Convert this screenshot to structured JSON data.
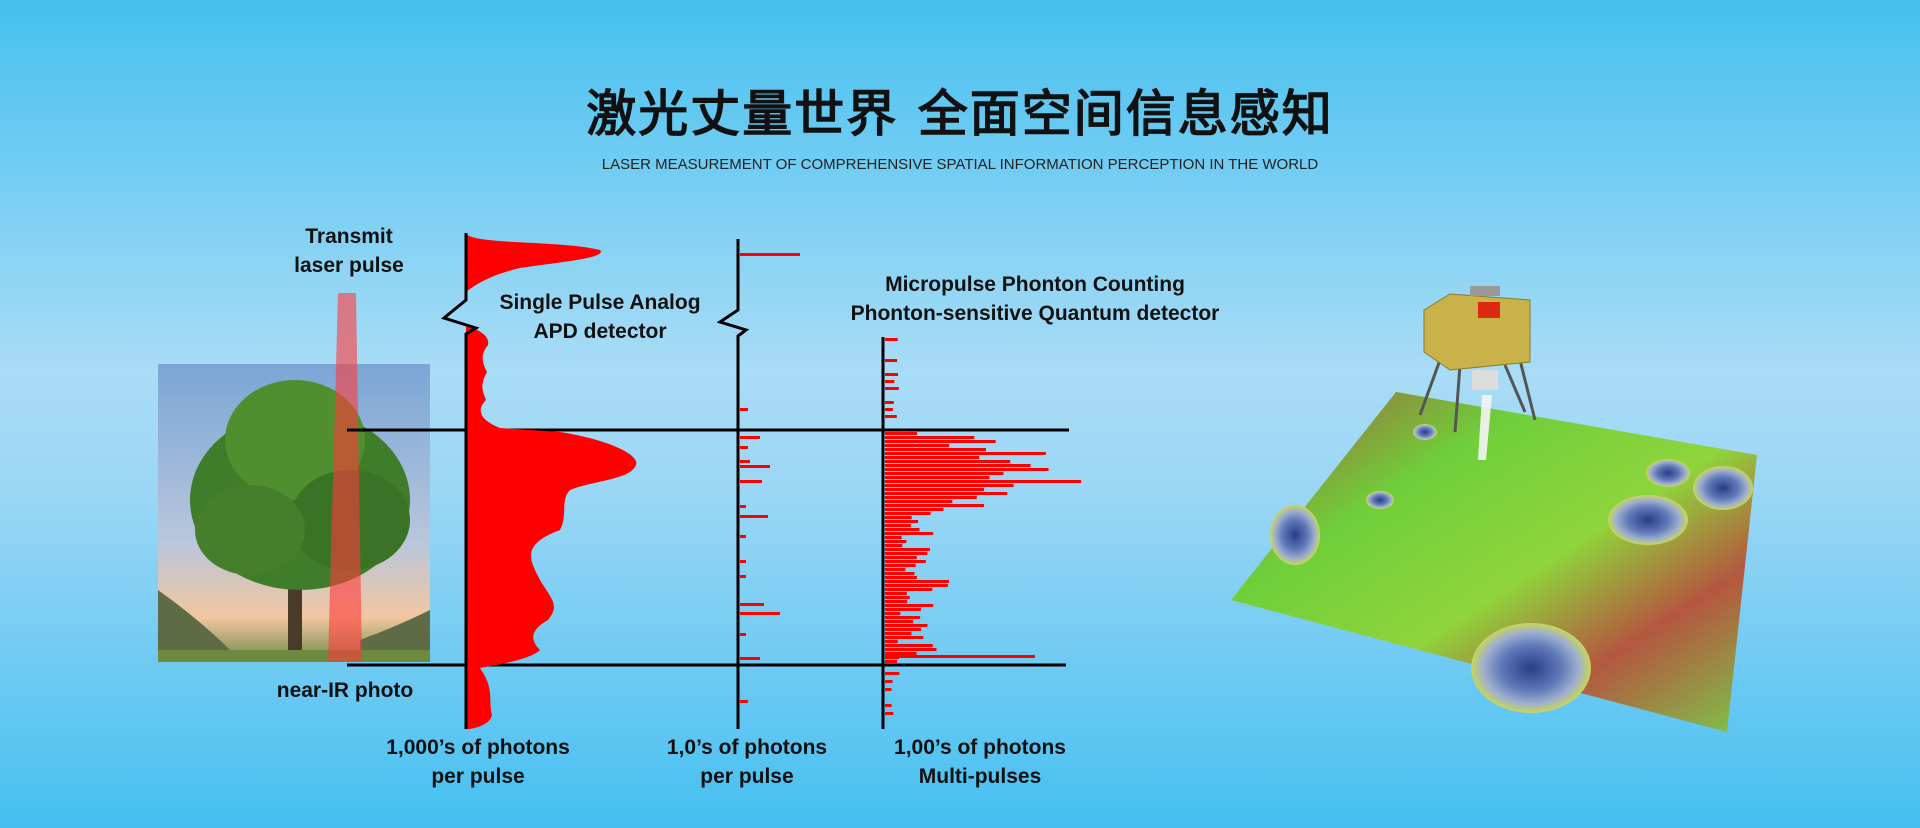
{
  "header": {
    "title": "激光丈量世界 全面空间信息感知",
    "subtitle": "LASER MEASUREMENT OF COMPREHENSIVE SPATIAL INFORMATION PERCEPTION IN THE WORLD"
  },
  "diagram": {
    "transmit_label": [
      "Transmit",
      "laser pulse"
    ],
    "photo_label": "near-IR photo",
    "analog_label": [
      "Single Pulse Analog",
      "APD detector"
    ],
    "counting_label": [
      "Micropulse Phonton Counting",
      "Phonton-sensitive Quantum detector"
    ],
    "axis_labels": [
      [
        "1,000’s of photons",
        "per pulse"
      ],
      [
        "1,0’s of photons",
        "per pulse"
      ],
      [
        "1,00’s of photons",
        "Multi-pulses"
      ]
    ]
  },
  "colors": {
    "signal": "#ff0000",
    "beam": "#ff5a5a",
    "background": "#7fd0f3"
  }
}
